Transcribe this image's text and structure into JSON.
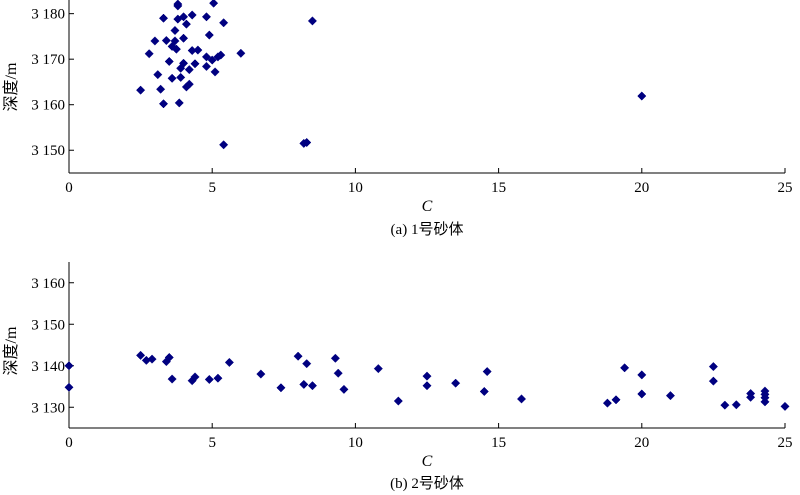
{
  "chart_data": [
    {
      "type": "scatter",
      "caption": "(a) 1号砂体",
      "xlabel": "C",
      "ylabel": "深度/m",
      "xlim": [
        0,
        25
      ],
      "ylim": [
        3145,
        3183
      ],
      "xticks": [
        0,
        5,
        10,
        15,
        20,
        25
      ],
      "yticks": [
        3150,
        3160,
        3170,
        3180
      ],
      "ytick_labels": [
        "3 150",
        "3 160",
        "3 170",
        "3 180"
      ],
      "marker": "diamond",
      "color": "#000080",
      "points": [
        [
          2.5,
          3163.2
        ],
        [
          2.8,
          3171.2
        ],
        [
          3.0,
          3174.0
        ],
        [
          3.1,
          3166.6
        ],
        [
          3.2,
          3163.4
        ],
        [
          3.3,
          3179.0
        ],
        [
          3.3,
          3160.2
        ],
        [
          3.4,
          3174.1
        ],
        [
          3.5,
          3169.5
        ],
        [
          3.6,
          3165.8
        ],
        [
          3.6,
          3172.8
        ],
        [
          3.7,
          3176.3
        ],
        [
          3.7,
          3174.0
        ],
        [
          3.75,
          3172.2
        ],
        [
          3.8,
          3182.1
        ],
        [
          3.8,
          3181.7
        ],
        [
          3.8,
          3178.8
        ],
        [
          3.85,
          3160.4
        ],
        [
          3.9,
          3168.0
        ],
        [
          3.9,
          3166.0
        ],
        [
          4.0,
          3179.3
        ],
        [
          4.0,
          3174.6
        ],
        [
          4.0,
          3169.1
        ],
        [
          4.1,
          3163.9
        ],
        [
          4.1,
          3177.7
        ],
        [
          4.2,
          3164.5
        ],
        [
          4.2,
          3167.7
        ],
        [
          4.3,
          3171.9
        ],
        [
          4.3,
          3179.7
        ],
        [
          4.4,
          3169.0
        ],
        [
          4.5,
          3172.0
        ],
        [
          4.8,
          3168.4
        ],
        [
          4.8,
          3170.5
        ],
        [
          4.8,
          3179.3
        ],
        [
          4.9,
          3175.3
        ],
        [
          5.0,
          3169.8
        ],
        [
          5.05,
          3182.3
        ],
        [
          5.1,
          3167.2
        ],
        [
          5.2,
          3170.5
        ],
        [
          5.3,
          3170.9
        ],
        [
          5.4,
          3178.0
        ],
        [
          5.4,
          3151.2
        ],
        [
          6.0,
          3171.3
        ],
        [
          8.2,
          3151.5
        ],
        [
          8.3,
          3151.7
        ],
        [
          8.5,
          3178.4
        ],
        [
          20.0,
          3161.9
        ]
      ]
    },
    {
      "type": "scatter",
      "caption": "(b) 2号砂体",
      "xlabel": "C",
      "ylabel": "深度/m",
      "xlim": [
        0,
        25
      ],
      "ylim": [
        3125,
        3165
      ],
      "xticks": [
        0,
        5,
        10,
        15,
        20,
        25
      ],
      "yticks": [
        3130,
        3140,
        3150,
        3160
      ],
      "ytick_labels": [
        "3 130",
        "3 140",
        "3 150",
        "3 160"
      ],
      "marker": "diamond",
      "color": "#000080",
      "points": [
        [
          0.0,
          3140.0
        ],
        [
          0.0,
          3134.8
        ],
        [
          2.5,
          3142.5
        ],
        [
          2.7,
          3141.3
        ],
        [
          2.9,
          3141.6
        ],
        [
          3.4,
          3141.0
        ],
        [
          3.5,
          3142.0
        ],
        [
          3.6,
          3136.8
        ],
        [
          4.3,
          3136.4
        ],
        [
          4.4,
          3137.3
        ],
        [
          4.9,
          3136.7
        ],
        [
          5.2,
          3137.0
        ],
        [
          5.6,
          3140.8
        ],
        [
          6.7,
          3138.0
        ],
        [
          7.4,
          3134.7
        ],
        [
          8.0,
          3142.3
        ],
        [
          8.2,
          3135.5
        ],
        [
          8.3,
          3140.5
        ],
        [
          8.5,
          3135.2
        ],
        [
          9.3,
          3141.8
        ],
        [
          9.4,
          3138.2
        ],
        [
          9.6,
          3134.3
        ],
        [
          10.8,
          3139.3
        ],
        [
          11.5,
          3131.5
        ],
        [
          12.5,
          3137.5
        ],
        [
          12.5,
          3135.2
        ],
        [
          13.5,
          3135.8
        ],
        [
          14.5,
          3133.8
        ],
        [
          14.6,
          3138.6
        ],
        [
          15.8,
          3132.0
        ],
        [
          18.8,
          3131.0
        ],
        [
          19.1,
          3131.8
        ],
        [
          19.4,
          3139.5
        ],
        [
          20.0,
          3133.2
        ],
        [
          20.0,
          3137.8
        ],
        [
          21.0,
          3132.8
        ],
        [
          22.5,
          3139.8
        ],
        [
          22.5,
          3136.3
        ],
        [
          22.9,
          3130.5
        ],
        [
          23.3,
          3130.6
        ],
        [
          23.8,
          3133.3
        ],
        [
          23.8,
          3132.4
        ],
        [
          24.3,
          3133.9
        ],
        [
          24.3,
          3133.1
        ],
        [
          24.3,
          3132.3
        ],
        [
          24.3,
          3131.3
        ],
        [
          25.0,
          3130.2
        ]
      ]
    }
  ]
}
